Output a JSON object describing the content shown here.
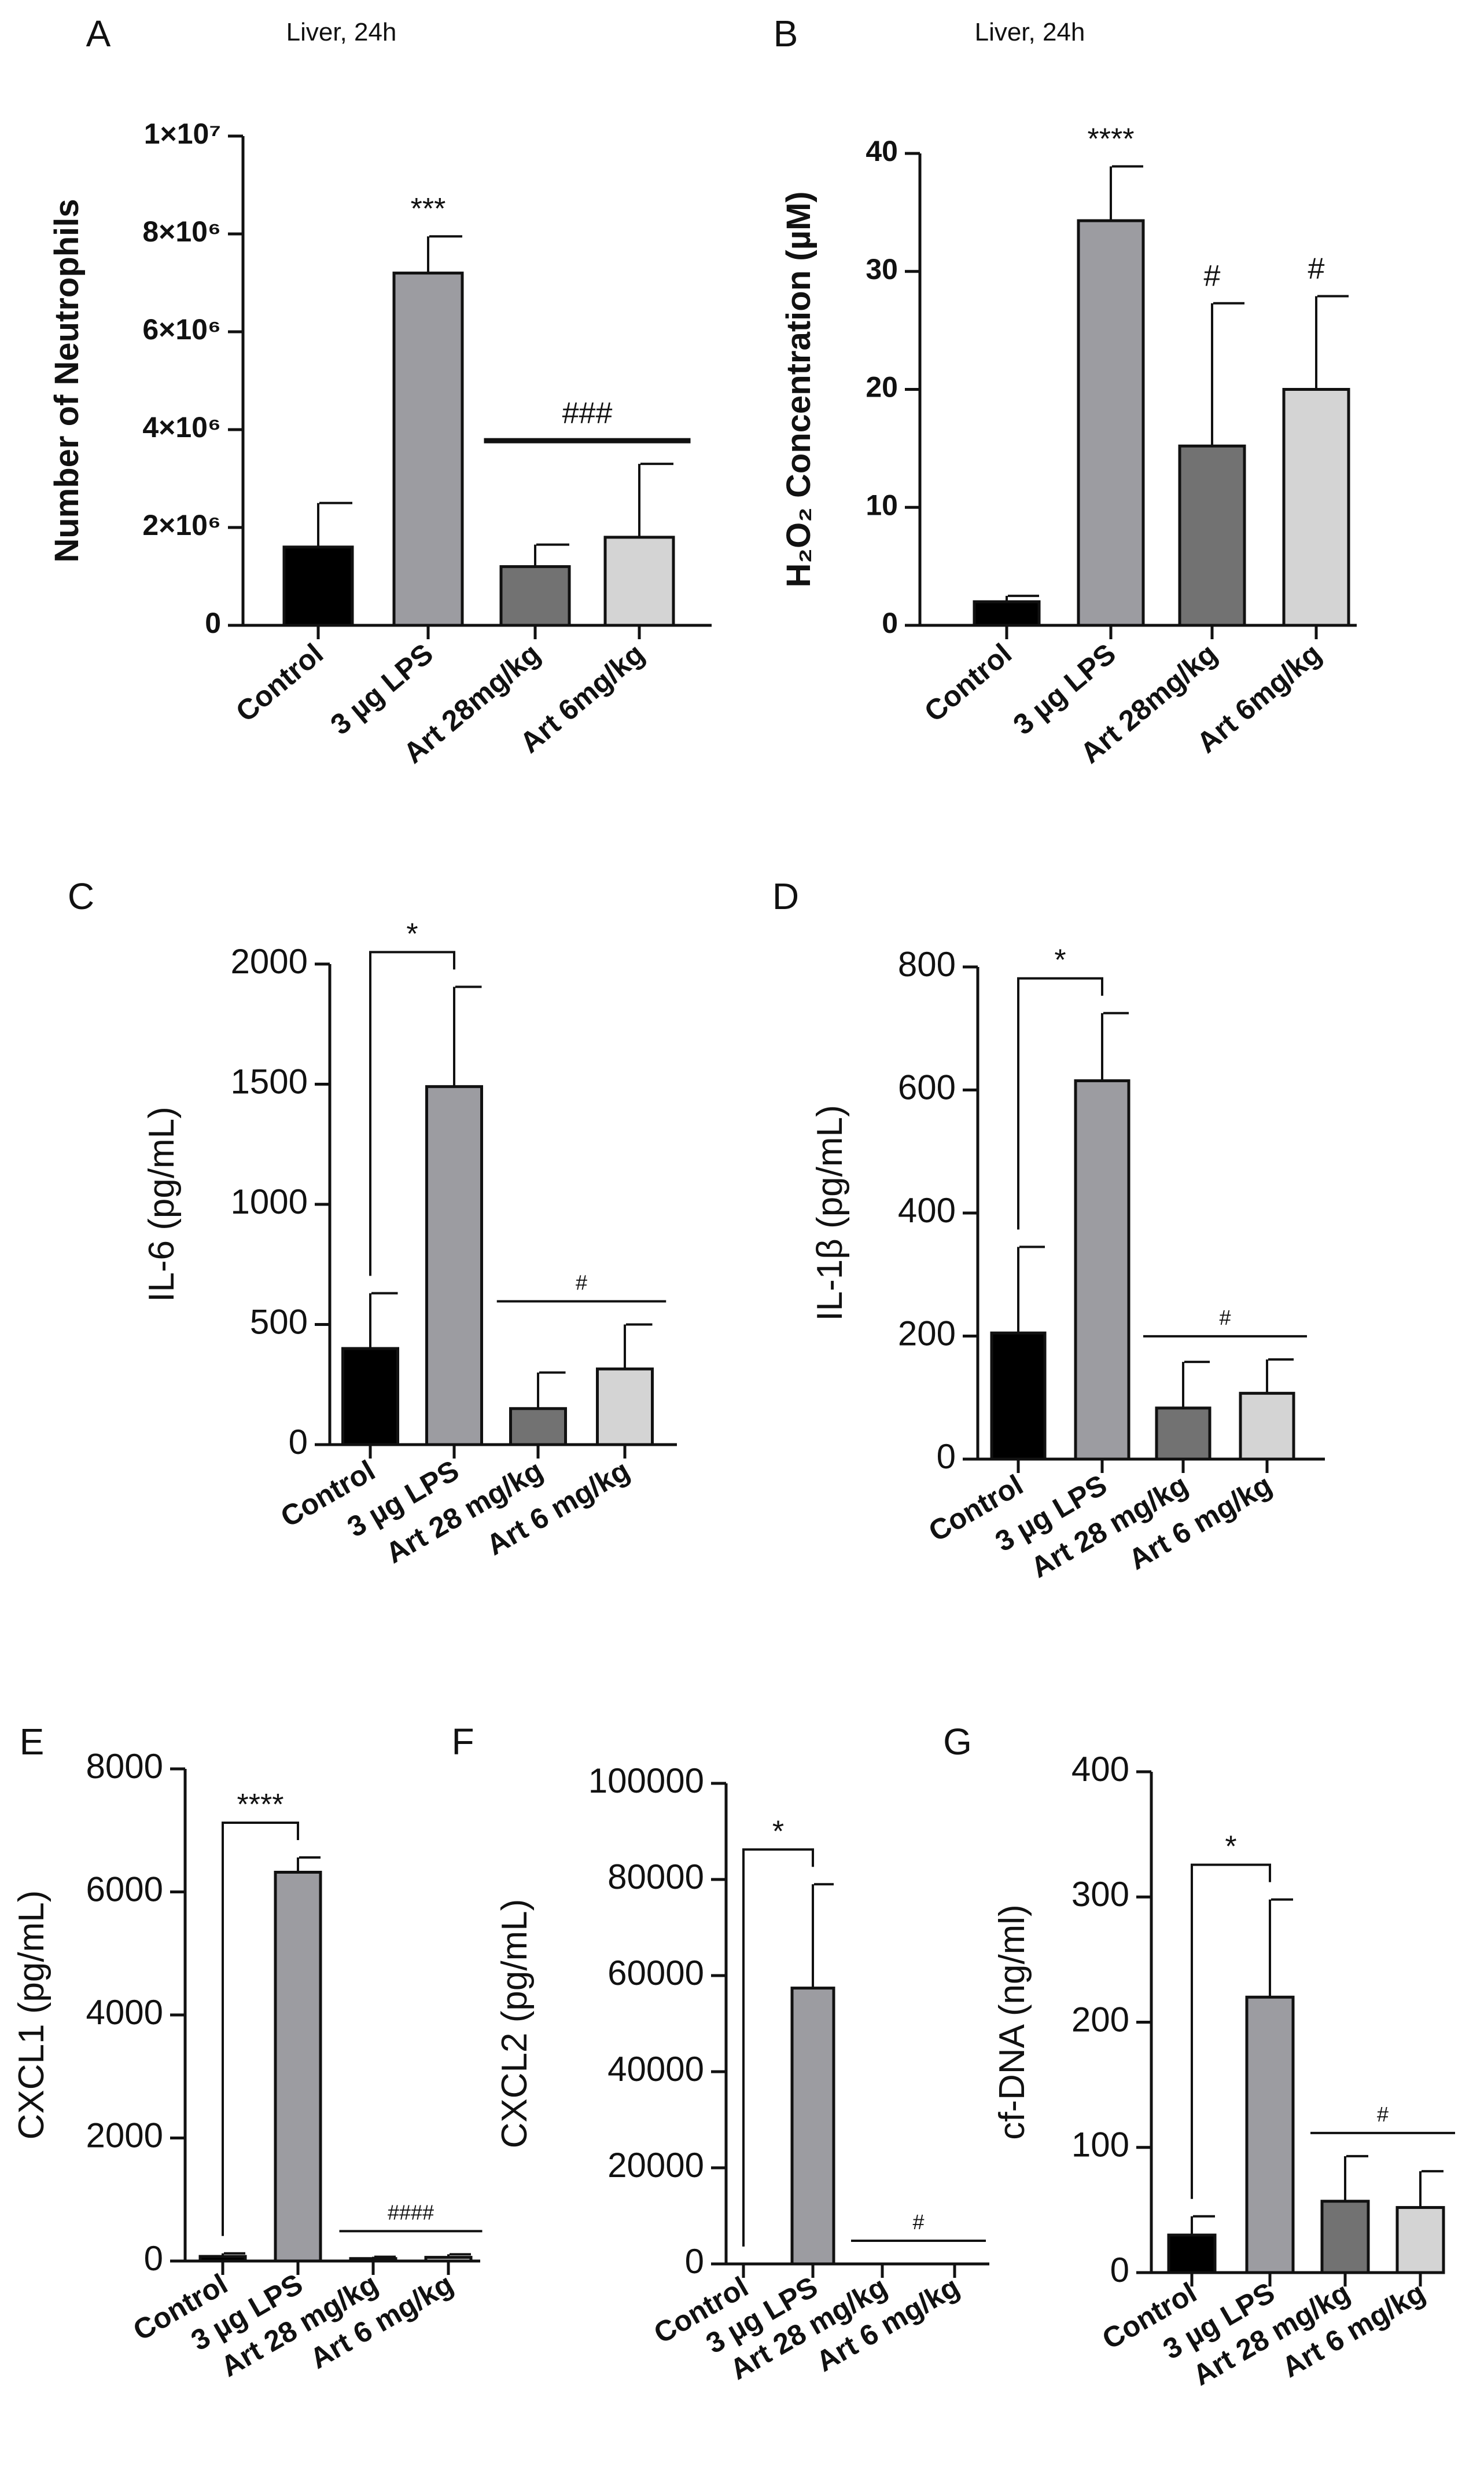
{
  "figure": {
    "colors": {
      "control": "#000000",
      "lps": "#9c9ca1",
      "art_high": "#727272",
      "art_low": "#d4d4d4",
      "outline": "#111111"
    }
  },
  "chart_data": [
    {
      "panel": "A",
      "type": "bar",
      "title": "Liver, 24h",
      "ylabel": "Number of Neutrophils",
      "categories": [
        "Control",
        "3 µg LPS",
        "Art 28mg/kg",
        "Art 6mg/kg"
      ],
      "values": [
        1600000,
        7200000,
        1200000,
        1800000
      ],
      "errors": [
        900000,
        750000,
        450000,
        1500000
      ],
      "ylim": [
        0,
        10000000
      ],
      "yticks": [
        0,
        2000000,
        4000000,
        6000000,
        8000000,
        10000000
      ],
      "ytick_labels": [
        "0",
        "2×10⁶",
        "4×10⁶",
        "6×10⁶",
        "8×10⁶",
        "1×10⁷"
      ],
      "annotations": [
        {
          "text": "***",
          "over": [
            1
          ]
        },
        {
          "text": "###",
          "over": [
            2,
            3
          ],
          "line": true
        }
      ]
    },
    {
      "panel": "B",
      "type": "bar",
      "title": "Liver, 24h",
      "ylabel": "H₂O₂ Concentration (µM)",
      "categories": [
        "Control",
        "3 µg LPS",
        "Art 28mg/kg",
        "Art 6mg/kg"
      ],
      "values": [
        2,
        34.3,
        15.2,
        20
      ],
      "errors": [
        0.5,
        4.6,
        12.1,
        7.9
      ],
      "ylim": [
        0,
        40
      ],
      "yticks": [
        0,
        10,
        20,
        30,
        40
      ],
      "ytick_labels": [
        "0",
        "10",
        "20",
        "30",
        "40"
      ],
      "annotations": [
        {
          "text": "****",
          "over": [
            1
          ]
        },
        {
          "text": "#",
          "over": [
            2
          ]
        },
        {
          "text": "#",
          "over": [
            3
          ]
        }
      ]
    },
    {
      "panel": "C",
      "type": "bar",
      "title": "",
      "ylabel": "IL-6 (pg/mL)",
      "categories": [
        "Control",
        "3 µg LPS",
        "Art 28 mg/kg",
        "Art 6 mg/kg"
      ],
      "values": [
        400,
        1490,
        150,
        315
      ],
      "errors": [
        230,
        415,
        150,
        185
      ],
      "ylim": [
        0,
        2000
      ],
      "yticks": [
        0,
        500,
        1000,
        1500,
        2000
      ],
      "ytick_labels": [
        "0",
        "500",
        "1000",
        "1500",
        "2000"
      ],
      "annotations": [
        {
          "text": "*",
          "bracket": [
            0,
            1
          ]
        },
        {
          "text": "#",
          "over": [
            2,
            3
          ],
          "line": true
        }
      ]
    },
    {
      "panel": "D",
      "type": "bar",
      "title": "",
      "ylabel": "IL-1β (pg/mL)",
      "categories": [
        "Control",
        "3 µg LPS",
        "Art 28 mg/kg",
        "Art 6 mg/kg"
      ],
      "values": [
        205,
        615,
        83,
        107
      ],
      "errors": [
        140,
        110,
        75,
        55
      ],
      "ylim": [
        0,
        800
      ],
      "yticks": [
        0,
        200,
        400,
        600,
        800
      ],
      "ytick_labels": [
        "0",
        "200",
        "400",
        "600",
        "800"
      ],
      "annotations": [
        {
          "text": "*",
          "bracket": [
            0,
            1
          ]
        },
        {
          "text": "#",
          "over": [
            2,
            3
          ],
          "line": true
        }
      ]
    },
    {
      "panel": "E",
      "type": "bar",
      "title": "",
      "ylabel": "CXCL1 (pg/mL)",
      "categories": [
        "Control",
        "3 µg LPS",
        "Art 28 mg/kg",
        "Art 6 mg/kg"
      ],
      "values": [
        75,
        6320,
        40,
        60
      ],
      "errors": [
        50,
        240,
        30,
        50
      ],
      "ylim": [
        0,
        8000
      ],
      "yticks": [
        0,
        2000,
        4000,
        6000,
        8000
      ],
      "ytick_labels": [
        "0",
        "2000",
        "4000",
        "6000",
        "8000"
      ],
      "annotations": [
        {
          "text": "****",
          "bracket": [
            0,
            1
          ]
        },
        {
          "text": "####",
          "over": [
            2,
            3
          ],
          "line": true
        }
      ]
    },
    {
      "panel": "F",
      "type": "bar",
      "title": "",
      "ylabel": "CXCL2 (pg/mL)",
      "categories": [
        "Control",
        "3 µg LPS",
        "Art 28 mg/kg",
        "Art 6 mg/kg"
      ],
      "values": [
        0,
        57400,
        0,
        0
      ],
      "errors": [
        0,
        21600,
        0,
        0
      ],
      "ylim": [
        0,
        100000
      ],
      "yticks": [
        0,
        20000,
        40000,
        60000,
        80000,
        100000
      ],
      "ytick_labels": [
        "0",
        "20000",
        "40000",
        "60000",
        "80000",
        "100000"
      ],
      "annotations": [
        {
          "text": "*",
          "bracket": [
            0,
            1
          ]
        },
        {
          "text": "#",
          "over": [
            2,
            3
          ],
          "line": true
        }
      ]
    },
    {
      "panel": "G",
      "type": "bar",
      "title": "",
      "ylabel": "cf-DNA (ng/ml)",
      "categories": [
        "Control",
        "3 µg LPS",
        "Art 28 mg/kg",
        "Art 6 mg/kg"
      ],
      "values": [
        30,
        220,
        57,
        52
      ],
      "errors": [
        15,
        78,
        36,
        29
      ],
      "ylim": [
        0,
        400
      ],
      "yticks": [
        0,
        100,
        200,
        300,
        400
      ],
      "ytick_labels": [
        "0",
        "100",
        "200",
        "300",
        "400"
      ],
      "annotations": [
        {
          "text": "*",
          "bracket": [
            0,
            1
          ]
        },
        {
          "text": "#",
          "over": [
            2,
            3
          ],
          "line": true
        }
      ]
    }
  ]
}
